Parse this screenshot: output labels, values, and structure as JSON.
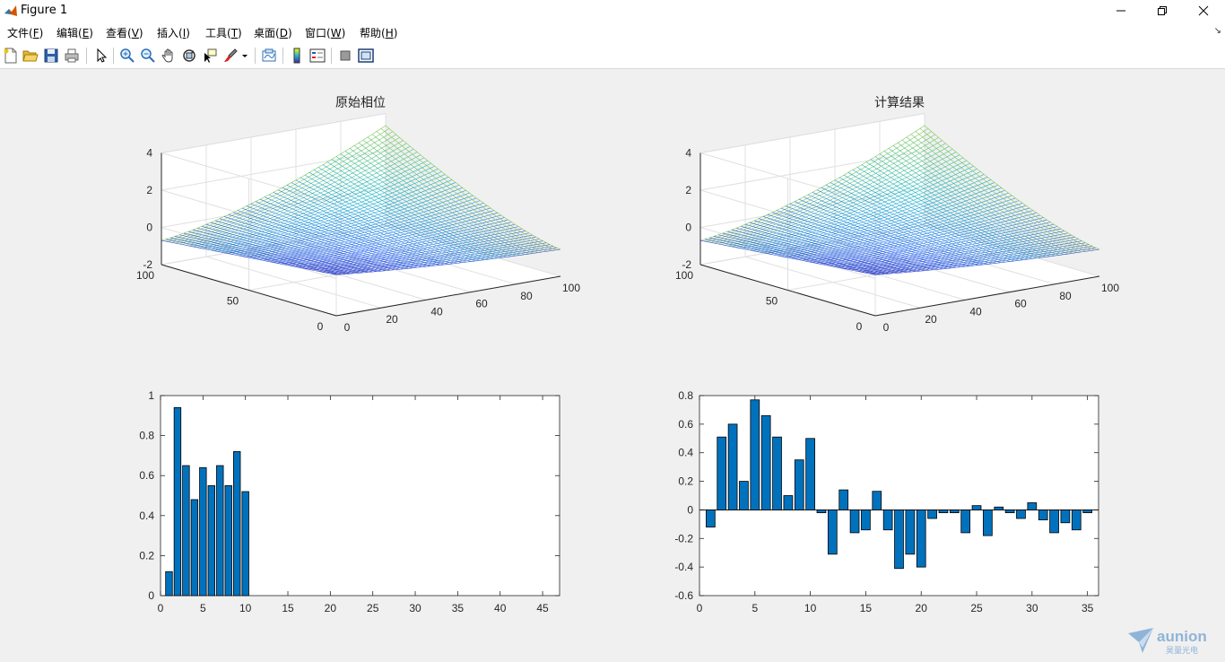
{
  "window": {
    "title": "Figure 1"
  },
  "menu": [
    {
      "label": "文件",
      "key": "(F)",
      "u": "F"
    },
    {
      "label": "编辑",
      "key": "(E)",
      "u": "E"
    },
    {
      "label": "查看",
      "key": "(V)",
      "u": "V"
    },
    {
      "label": "插入",
      "key": "(I)",
      "u": "I"
    },
    {
      "label": "工具",
      "key": "(T)",
      "u": "T"
    },
    {
      "label": "桌面",
      "key": "(D)",
      "u": "D"
    },
    {
      "label": "窗口",
      "key": "(W)",
      "u": "W"
    },
    {
      "label": "帮助",
      "key": "(H)",
      "u": "H"
    }
  ],
  "toolbar_icons": [
    "new-figure-icon",
    "open-icon",
    "save-icon",
    "print-icon",
    "pointer-icon",
    "zoom-in-icon",
    "zoom-out-icon",
    "pan-icon",
    "rotate-3d-icon",
    "data-cursor-icon",
    "brush-icon",
    "link-plot-icon",
    "colorbar-icon",
    "legend-icon",
    "hide-plot-tools-icon",
    "show-plot-tools-icon"
  ],
  "colors": {
    "bar_fill": "#0072bd",
    "bar_edge": "#000000",
    "surface_low": "#3e26a8",
    "surface_high": "#f9fb0e"
  },
  "chart_data": [
    {
      "type": "surface",
      "title": "原始相位",
      "x_ticks": [
        "0",
        "20",
        "40",
        "60",
        "80",
        "100"
      ],
      "y_ticks": [
        "0",
        "50",
        "100"
      ],
      "z_ticks": [
        "-2",
        "0",
        "2",
        "4"
      ],
      "xlim": [
        0,
        100
      ],
      "ylim": [
        0,
        100
      ],
      "zlim": [
        -2,
        4
      ],
      "colormap": "parula",
      "grid": true
    },
    {
      "type": "surface",
      "title": "计算结果",
      "x_ticks": [
        "0",
        "20",
        "40",
        "60",
        "80",
        "100"
      ],
      "y_ticks": [
        "0",
        "50",
        "100"
      ],
      "z_ticks": [
        "-2",
        "0",
        "2",
        "4"
      ],
      "xlim": [
        0,
        100
      ],
      "ylim": [
        0,
        100
      ],
      "zlim": [
        -2,
        4
      ],
      "colormap": "parula",
      "grid": true
    },
    {
      "type": "bar",
      "title": "",
      "x": [
        1,
        2,
        3,
        4,
        5,
        6,
        7,
        8,
        9,
        10
      ],
      "values": [
        0.12,
        0.94,
        0.65,
        0.48,
        0.64,
        0.55,
        0.65,
        0.55,
        0.72,
        0.52
      ],
      "xlim": [
        0,
        47
      ],
      "ylim": [
        0,
        1
      ],
      "x_ticks": [
        "0",
        "5",
        "10",
        "15",
        "20",
        "25",
        "30",
        "35",
        "40",
        "45"
      ],
      "y_ticks": [
        "0",
        "0.2",
        "0.4",
        "0.6",
        "0.8",
        "1"
      ]
    },
    {
      "type": "bar",
      "title": "",
      "x": [
        1,
        2,
        3,
        4,
        5,
        6,
        7,
        8,
        9,
        10,
        11,
        12,
        13,
        14,
        15,
        16,
        17,
        18,
        19,
        20,
        21,
        22,
        23,
        24,
        25,
        26,
        27,
        28,
        29,
        30,
        31,
        32,
        33,
        34,
        35
      ],
      "values": [
        -0.12,
        0.51,
        0.6,
        0.2,
        0.77,
        0.66,
        0.51,
        0.1,
        0.35,
        0.5,
        -0.02,
        -0.31,
        0.14,
        -0.16,
        -0.14,
        0.13,
        -0.14,
        -0.41,
        -0.31,
        -0.4,
        -0.06,
        -0.02,
        -0.02,
        -0.16,
        0.03,
        -0.18,
        0.02,
        -0.02,
        -0.06,
        0.05,
        -0.07,
        -0.16,
        -0.09,
        -0.14,
        -0.02
      ],
      "xlim": [
        0,
        36
      ],
      "ylim": [
        -0.6,
        0.8
      ],
      "x_ticks": [
        "0",
        "5",
        "10",
        "15",
        "20",
        "25",
        "30",
        "35"
      ],
      "y_ticks": [
        "-0.6",
        "-0.4",
        "-0.2",
        "0",
        "0.2",
        "0.4",
        "0.6",
        "0.8"
      ]
    }
  ],
  "watermark": {
    "brand": "aunion",
    "sub": "昊量光电"
  }
}
